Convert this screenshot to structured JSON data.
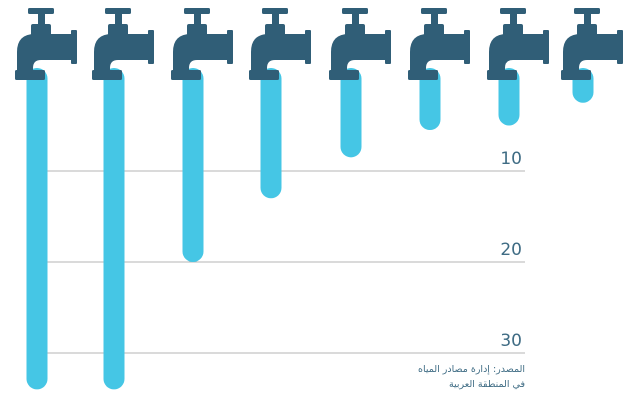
{
  "chart_data": {
    "type": "bar",
    "orientation": "downward",
    "categories": [
      "",
      "",
      "",
      "",
      "",
      "",
      "",
      ""
    ],
    "values": [
      34,
      34,
      20,
      13,
      8.5,
      5.5,
      5,
      2.5
    ],
    "ylim": [
      0,
      35
    ],
    "yticks": [
      10,
      20,
      30
    ],
    "ytick_labels": [
      "10",
      "20",
      "30"
    ],
    "grid": true,
    "colors": {
      "water": "#45c6e5",
      "faucet": "#305e77",
      "gridline": "#b5b5b5",
      "label": "#3f6c84"
    }
  },
  "source": {
    "line1": "المصدر: إدارة مصادر المياه",
    "line2": "في المنطقة العربية"
  }
}
